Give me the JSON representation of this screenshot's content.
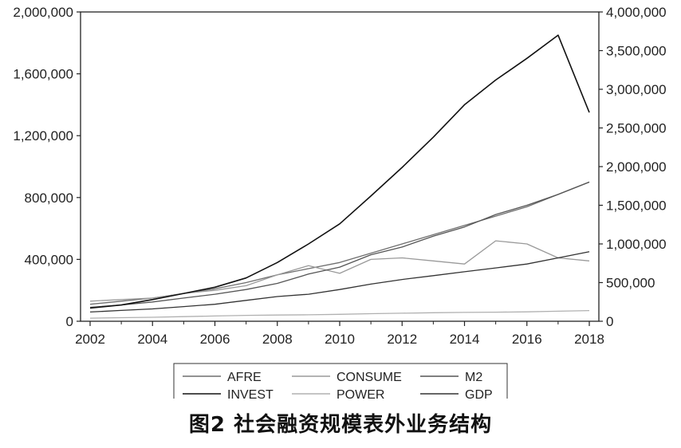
{
  "caption": "图2 社会融资规模表外业务结构",
  "chart_data": {
    "type": "line",
    "x": [
      2002,
      2003,
      2004,
      2005,
      2006,
      2007,
      2008,
      2009,
      2010,
      2011,
      2012,
      2013,
      2014,
      2015,
      2016,
      2017,
      2018
    ],
    "x_ticks": [
      "2002",
      "2004",
      "2006",
      "2008",
      "2010",
      "2012",
      "2014",
      "2016",
      "2018"
    ],
    "y_left_ticks": [
      "0",
      "400,000",
      "800,000",
      "1,200,000",
      "1,600,000",
      "2,000,000"
    ],
    "y_right_ticks": [
      "0",
      "500,000",
      "1,000,000",
      "1,500,000",
      "2,000,000",
      "2,500,000",
      "3,000,000",
      "3,500,000",
      "4,000,000"
    ],
    "ylim_left": [
      0,
      2000000
    ],
    "ylim_right": [
      0,
      4000000
    ],
    "grid": false,
    "legend_position": "bottom",
    "series": [
      {
        "name": "AFRE",
        "axis": "left",
        "color": "#6e6e6e",
        "values": [
          110000,
          130000,
          150000,
          180000,
          210000,
          250000,
          300000,
          340000,
          380000,
          440000,
          500000,
          560000,
          620000,
          680000,
          740000,
          820000,
          900000
        ]
      },
      {
        "name": "CONSUME",
        "axis": "left",
        "color": "#9a9a9a",
        "values": [
          130000,
          140000,
          150000,
          180000,
          200000,
          230000,
          300000,
          360000,
          310000,
          400000,
          410000,
          390000,
          370000,
          520000,
          500000,
          410000,
          390000
        ]
      },
      {
        "name": "M2",
        "axis": "right",
        "color": "#555555",
        "values": [
          180000,
          210000,
          250000,
          300000,
          350000,
          410000,
          490000,
          610000,
          700000,
          860000,
          960000,
          1100000,
          1220000,
          1380000,
          1500000,
          1640000,
          1800000
        ]
      },
      {
        "name": "INVEST",
        "axis": "right",
        "color": "#111111",
        "values": [
          170000,
          210000,
          280000,
          360000,
          440000,
          560000,
          760000,
          1000000,
          1260000,
          1620000,
          1990000,
          2380000,
          2800000,
          3120000,
          3400000,
          3700000,
          2700000
        ]
      },
      {
        "name": "POWER",
        "axis": "left",
        "color": "#b0b0b0",
        "values": [
          20000,
          23000,
          26000,
          30000,
          34000,
          38000,
          40000,
          42000,
          45000,
          49000,
          52000,
          55000,
          57000,
          59000,
          61000,
          65000,
          69000
        ]
      },
      {
        "name": "GDP",
        "axis": "right",
        "color": "#333333",
        "values": [
          120000,
          140000,
          160000,
          190000,
          220000,
          270000,
          320000,
          350000,
          410000,
          480000,
          540000,
          590000,
          640000,
          690000,
          740000,
          820000,
          900000
        ]
      }
    ]
  }
}
